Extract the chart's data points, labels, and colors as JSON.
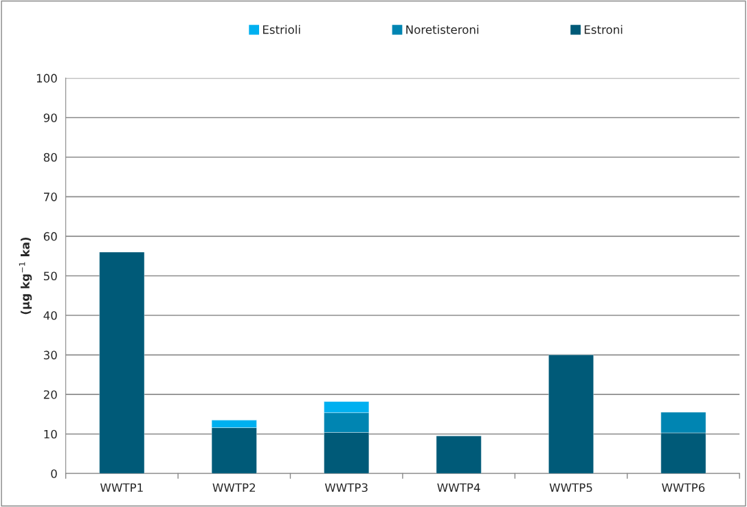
{
  "chart_data": {
    "type": "bar",
    "stacked": true,
    "ylabel": "(µg kg$^{−1}$ ka)",
    "categories": [
      "WWTP1",
      "WWTP2",
      "WWTP3",
      "WWTP4",
      "WWTP5",
      "WWTP6"
    ],
    "series": [
      {
        "name": "Estroni",
        "color": "#005a78",
        "values": [
          56.0,
          11.6,
          10.4,
          9.5,
          30.0,
          10.3
        ]
      },
      {
        "name": "Noretisteroni",
        "color": "#0085b2",
        "values": [
          null,
          null,
          5.0,
          null,
          null,
          5.2
        ]
      },
      {
        "name": "Estrioli",
        "color": "#00b0f0",
        "values": [
          null,
          1.9,
          2.8,
          null,
          null,
          null
        ]
      }
    ],
    "ylim": [
      0,
      100
    ],
    "yticks": [
      0,
      10,
      20,
      30,
      40,
      50,
      60,
      70,
      80,
      90,
      100
    ],
    "grid": "y",
    "legend": "top"
  }
}
